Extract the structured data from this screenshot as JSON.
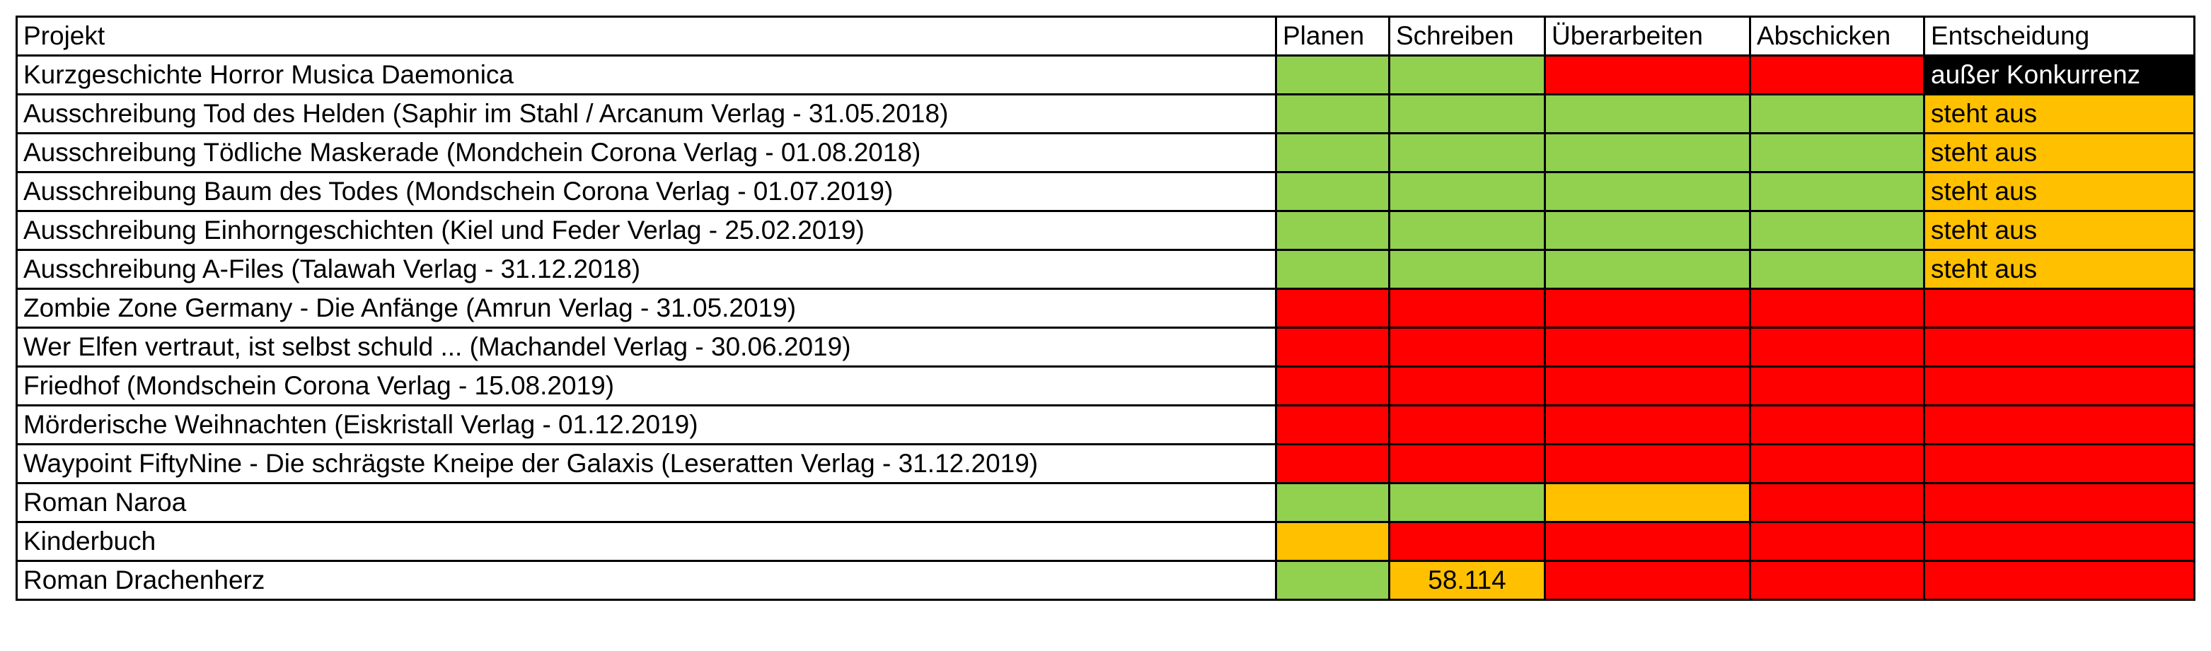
{
  "colors": {
    "green": "#92d050",
    "red": "#ff0000",
    "orange": "#ffc000",
    "black": "#000000",
    "white": "#ffffff"
  },
  "headers": [
    "Projekt",
    "Planen",
    "Schreiben",
    "Überarbeiten",
    "Abschicken",
    "Entscheidung"
  ],
  "rows": [
    {
      "name": "Kurzgeschichte Horror Musica Daemonica",
      "cells": [
        {
          "status": "green"
        },
        {
          "status": "green"
        },
        {
          "status": "red"
        },
        {
          "status": "red"
        },
        {
          "status": "black",
          "text": "außer Konkurrenz"
        }
      ]
    },
    {
      "name": "Ausschreibung Tod des Helden (Saphir im Stahl / Arcanum Verlag - 31.05.2018)",
      "cells": [
        {
          "status": "green"
        },
        {
          "status": "green"
        },
        {
          "status": "green"
        },
        {
          "status": "green"
        },
        {
          "status": "orange",
          "text": "steht aus"
        }
      ]
    },
    {
      "name": "Ausschreibung Tödliche Maskerade (Mondchein Corona Verlag - 01.08.2018)",
      "cells": [
        {
          "status": "green"
        },
        {
          "status": "green"
        },
        {
          "status": "green"
        },
        {
          "status": "green"
        },
        {
          "status": "orange",
          "text": "steht aus"
        }
      ]
    },
    {
      "name": "Ausschreibung Baum des Todes (Mondschein Corona Verlag - 01.07.2019)",
      "cells": [
        {
          "status": "green"
        },
        {
          "status": "green"
        },
        {
          "status": "green"
        },
        {
          "status": "green"
        },
        {
          "status": "orange",
          "text": "steht aus"
        }
      ]
    },
    {
      "name": "Ausschreibung Einhorngeschichten (Kiel und Feder Verlag - 25.02.2019)",
      "cells": [
        {
          "status": "green"
        },
        {
          "status": "green"
        },
        {
          "status": "green"
        },
        {
          "status": "green"
        },
        {
          "status": "orange",
          "text": "steht aus"
        }
      ]
    },
    {
      "name": "Ausschreibung A-Files (Talawah Verlag - 31.12.2018)",
      "cells": [
        {
          "status": "green"
        },
        {
          "status": "green"
        },
        {
          "status": "green"
        },
        {
          "status": "green"
        },
        {
          "status": "orange",
          "text": "steht aus"
        }
      ]
    },
    {
      "name": "Zombie Zone Germany - Die Anfänge (Amrun Verlag - 31.05.2019)",
      "cells": [
        {
          "status": "red"
        },
        {
          "status": "red"
        },
        {
          "status": "red"
        },
        {
          "status": "red"
        },
        {
          "status": "red"
        }
      ]
    },
    {
      "name": "Wer Elfen vertraut, ist selbst schuld ... (Machandel Verlag - 30.06.2019)",
      "cells": [
        {
          "status": "red"
        },
        {
          "status": "red"
        },
        {
          "status": "red"
        },
        {
          "status": "red"
        },
        {
          "status": "red"
        }
      ]
    },
    {
      "name": "Friedhof (Mondschein Corona Verlag - 15.08.2019)",
      "cells": [
        {
          "status": "red"
        },
        {
          "status": "red"
        },
        {
          "status": "red"
        },
        {
          "status": "red"
        },
        {
          "status": "red"
        }
      ]
    },
    {
      "name": "Mörderische Weihnachten (Eiskristall Verlag - 01.12.2019)",
      "cells": [
        {
          "status": "red"
        },
        {
          "status": "red"
        },
        {
          "status": "red"
        },
        {
          "status": "red"
        },
        {
          "status": "red"
        }
      ]
    },
    {
      "name": "Waypoint FiftyNine - Die schrägste Kneipe der Galaxis (Leseratten Verlag - 31.12.2019)",
      "cells": [
        {
          "status": "red"
        },
        {
          "status": "red"
        },
        {
          "status": "red"
        },
        {
          "status": "red"
        },
        {
          "status": "red"
        }
      ]
    },
    {
      "name": "Roman Naroa",
      "cells": [
        {
          "status": "green"
        },
        {
          "status": "green"
        },
        {
          "status": "orange"
        },
        {
          "status": "red"
        },
        {
          "status": "red"
        }
      ]
    },
    {
      "name": "Kinderbuch",
      "cells": [
        {
          "status": "orange"
        },
        {
          "status": "red"
        },
        {
          "status": "red"
        },
        {
          "status": "red"
        },
        {
          "status": "red"
        }
      ]
    },
    {
      "name": "Roman Drachenherz",
      "cells": [
        {
          "status": "green"
        },
        {
          "status": "orange",
          "text": "58.114",
          "align": "center"
        },
        {
          "status": "red"
        },
        {
          "status": "red"
        },
        {
          "status": "red"
        }
      ]
    }
  ]
}
